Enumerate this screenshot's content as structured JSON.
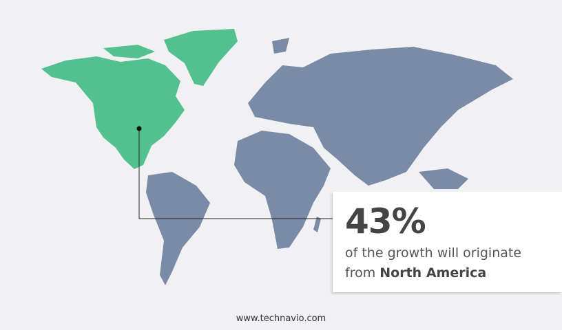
{
  "stat": {
    "value": "43%",
    "text_line1": "of the growth will originate",
    "text_prefix": "from",
    "region": "North America"
  },
  "footer": {
    "website": "www.technavio.com"
  },
  "colors": {
    "highlight_region": "#52c08f",
    "other_regions": "#7a8ba8",
    "background": "#f1f1f3"
  }
}
